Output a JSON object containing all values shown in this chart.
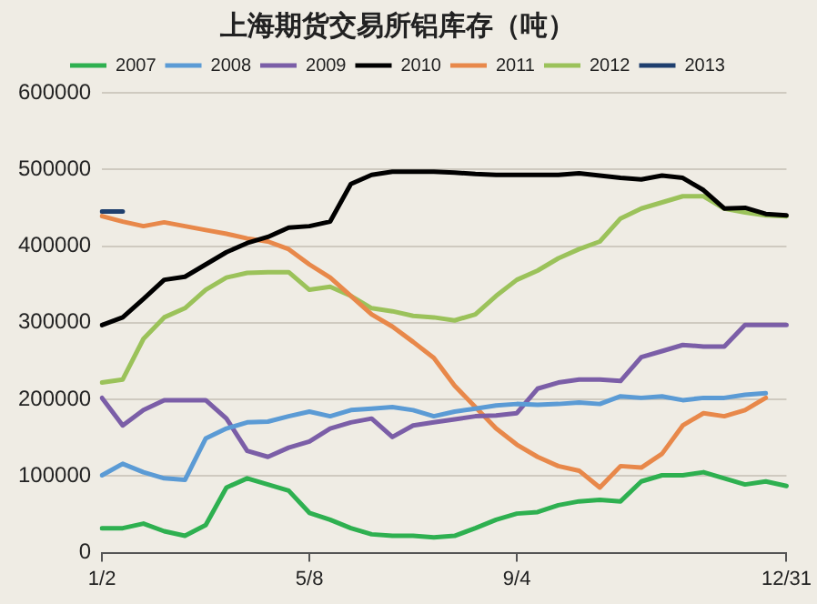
{
  "chart_data": {
    "type": "line",
    "title": "上海期货交易所铝库存（吨）",
    "categories": [
      "1/2",
      null,
      null,
      null,
      null,
      null,
      null,
      null,
      null,
      null,
      "5/8",
      null,
      null,
      null,
      null,
      null,
      null,
      null,
      null,
      null,
      "9/4",
      null,
      null,
      null,
      null,
      null,
      null,
      null,
      null,
      null,
      null,
      null,
      null,
      "12/31"
    ],
    "series": [
      {
        "name": "2007",
        "color": "#2eb050",
        "values": [
          32000,
          32000,
          38000,
          28000,
          22000,
          36000,
          85000,
          97000,
          89000,
          81000,
          52000,
          43000,
          32000,
          24000,
          22000,
          22000,
          20000,
          22000,
          32000,
          43000,
          51000,
          53000,
          62000,
          67000,
          69000,
          67000,
          93000,
          101000,
          101000,
          105000,
          97000,
          89000,
          93000,
          87000
        ]
      },
      {
        "name": "2008",
        "color": "#5b9bd5",
        "values": [
          101000,
          116000,
          105000,
          97000,
          95000,
          149000,
          162000,
          170000,
          171000,
          178000,
          184000,
          178000,
          186000,
          188000,
          190000,
          186000,
          178000,
          184000,
          188000,
          192000,
          194000,
          193000,
          194000,
          196000,
          194000,
          204000,
          202000,
          204000,
          199000,
          202000,
          202000,
          206000,
          208000,
          null
        ]
      },
      {
        "name": "2009",
        "color": "#7b5ea7",
        "values": [
          202000,
          166000,
          186000,
          199000,
          199000,
          199000,
          175000,
          133000,
          125000,
          137000,
          145000,
          162000,
          170000,
          175000,
          151000,
          166000,
          170000,
          174000,
          178000,
          179000,
          182000,
          214000,
          222000,
          226000,
          226000,
          224000,
          255000,
          263000,
          271000,
          269000,
          269000,
          297000,
          297000,
          297000
        ]
      },
      {
        "name": "2010",
        "color": "#000000",
        "values": [
          297000,
          307000,
          331000,
          356000,
          360000,
          376000,
          392000,
          404000,
          412000,
          424000,
          426000,
          432000,
          481000,
          493000,
          497000,
          497000,
          497000,
          496000,
          494000,
          493000,
          493000,
          493000,
          493000,
          495000,
          492000,
          489000,
          487000,
          492000,
          489000,
          473000,
          449000,
          450000,
          442000,
          440000
        ]
      },
      {
        "name": "2011",
        "color": "#e8884a",
        "values": [
          439000,
          432000,
          426000,
          431000,
          426000,
          421000,
          416000,
          410000,
          406000,
          396000,
          376000,
          359000,
          335000,
          311000,
          295000,
          275000,
          254000,
          218000,
          190000,
          162000,
          141000,
          125000,
          113000,
          107000,
          85000,
          113000,
          111000,
          129000,
          166000,
          182000,
          178000,
          186000,
          202000,
          null
        ]
      },
      {
        "name": "2012",
        "color": "#9bc25a",
        "values": [
          222000,
          226000,
          279000,
          307000,
          319000,
          343000,
          359000,
          365000,
          366000,
          366000,
          343000,
          347000,
          335000,
          319000,
          315000,
          309000,
          307000,
          303000,
          311000,
          335000,
          356000,
          368000,
          384000,
          396000,
          406000,
          436000,
          449000,
          457000,
          465000,
          465000,
          449000,
          444000,
          440000,
          439000
        ]
      },
      {
        "name": "2013",
        "color": "#1f3f6e",
        "values": [
          445000,
          445000,
          null,
          null,
          null,
          null,
          null,
          null,
          null,
          null,
          null,
          null,
          null,
          null,
          null,
          null,
          null,
          null,
          null,
          null,
          null,
          null,
          null,
          null,
          null,
          null,
          null,
          null,
          null,
          null,
          null,
          null,
          null,
          null
        ]
      }
    ],
    "ylim": [
      0,
      600000
    ],
    "yticks": [
      0,
      100000,
      200000,
      300000,
      400000,
      500000,
      600000
    ],
    "grid": "y",
    "legend": "top",
    "marker": "none",
    "line_style": "solid"
  }
}
